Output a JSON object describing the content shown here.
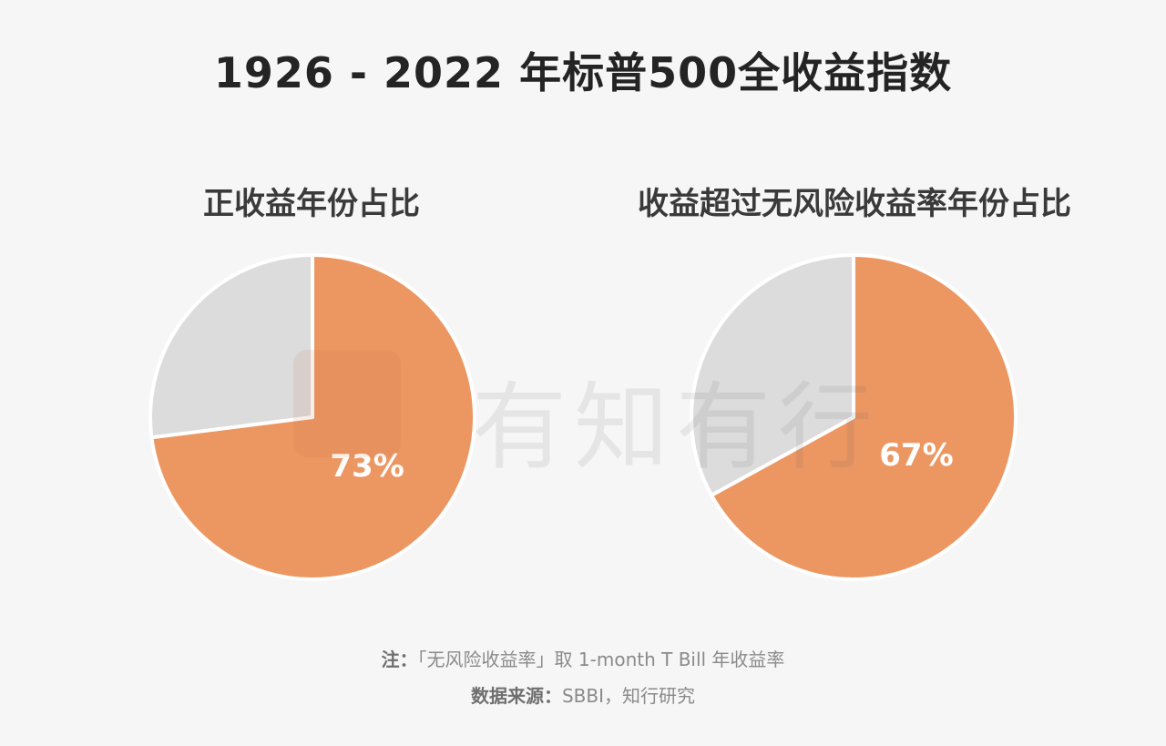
{
  "title": "1926 - 2022 年标普500全收益指数",
  "watermark": "有知有行",
  "note": {
    "label": "注：",
    "text": "「无风险收益率」取 1-month T Bill 年收益率"
  },
  "source": {
    "label": "数据来源：",
    "text": "SBBI，知行研究"
  },
  "colors": {
    "highlight": "#ec9762",
    "remainder": "#dcdcdc",
    "label_text": "#ffffff"
  },
  "chart_data": [
    {
      "type": "pie",
      "title": "正收益年份占比",
      "slices": [
        {
          "value": 73,
          "label": "73%",
          "color": "#ec9762",
          "show_label": true
        },
        {
          "value": 27,
          "label": "",
          "color": "#dcdcdc",
          "show_label": false
        }
      ]
    },
    {
      "type": "pie",
      "title": "收益超过无风险收益率年份占比",
      "slices": [
        {
          "value": 67,
          "label": "67%",
          "color": "#ec9762",
          "show_label": true
        },
        {
          "value": 33,
          "label": "",
          "color": "#dcdcdc",
          "show_label": false
        }
      ]
    }
  ]
}
